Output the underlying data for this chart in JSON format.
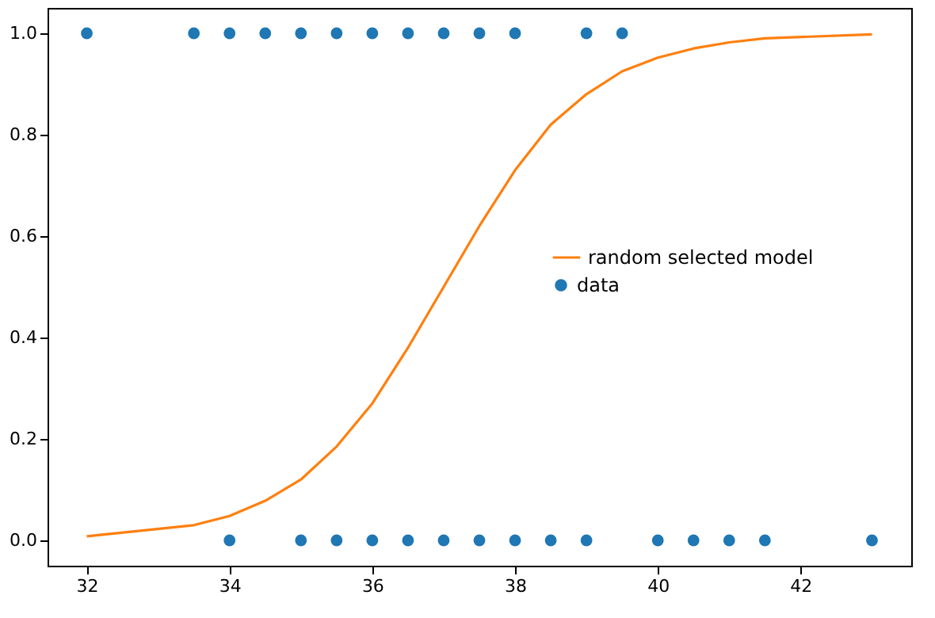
{
  "chart_data": {
    "type": "scatter",
    "xlim": [
      31.45,
      43.55
    ],
    "ylim": [
      -0.05,
      1.05
    ],
    "xticks": [
      32,
      34,
      36,
      38,
      40,
      42
    ],
    "yticks": [
      {
        "value": 0,
        "label": "0.0"
      },
      {
        "value": 0.2,
        "label": "0.2"
      },
      {
        "value": 0.4,
        "label": "0.4"
      },
      {
        "value": 0.6,
        "label": "0.6"
      },
      {
        "value": 0.8,
        "label": "0.8"
      },
      {
        "value": 1,
        "label": "1.0"
      }
    ],
    "grid": false,
    "legend": "right",
    "series": [
      {
        "name": "random selected model",
        "type": "line",
        "color": "#ff7f0e",
        "marker": "none",
        "line_style": "solid",
        "x": [
          32,
          33.5,
          34,
          34.5,
          35,
          35.5,
          36,
          36.5,
          37,
          37.5,
          38,
          38.5,
          39,
          39.5,
          40,
          40.5,
          41,
          41.5,
          43
        ],
        "values": [
          0.008,
          0.03,
          0.048,
          0.078,
          0.12,
          0.185,
          0.27,
          0.38,
          0.5,
          0.62,
          0.73,
          0.82,
          0.88,
          0.925,
          0.952,
          0.97,
          0.982,
          0.99,
          0.998
        ]
      },
      {
        "name": "data",
        "color": "#1f77b4",
        "marker": "circle",
        "x": [
          32,
          33.5,
          34,
          34.5,
          35,
          35.5,
          36,
          36.5,
          37,
          37.5,
          38,
          39,
          39.5,
          34,
          35,
          35.5,
          36,
          36.5,
          37,
          37.5,
          38,
          38.5,
          39,
          40,
          40.5,
          41,
          41.5,
          43
        ],
        "values": [
          1,
          1,
          1,
          1,
          1,
          1,
          1,
          1,
          1,
          1,
          1,
          1,
          1,
          0,
          0,
          0,
          0,
          0,
          0,
          0,
          0,
          0,
          0,
          0,
          0,
          0,
          0,
          0
        ]
      }
    ]
  }
}
